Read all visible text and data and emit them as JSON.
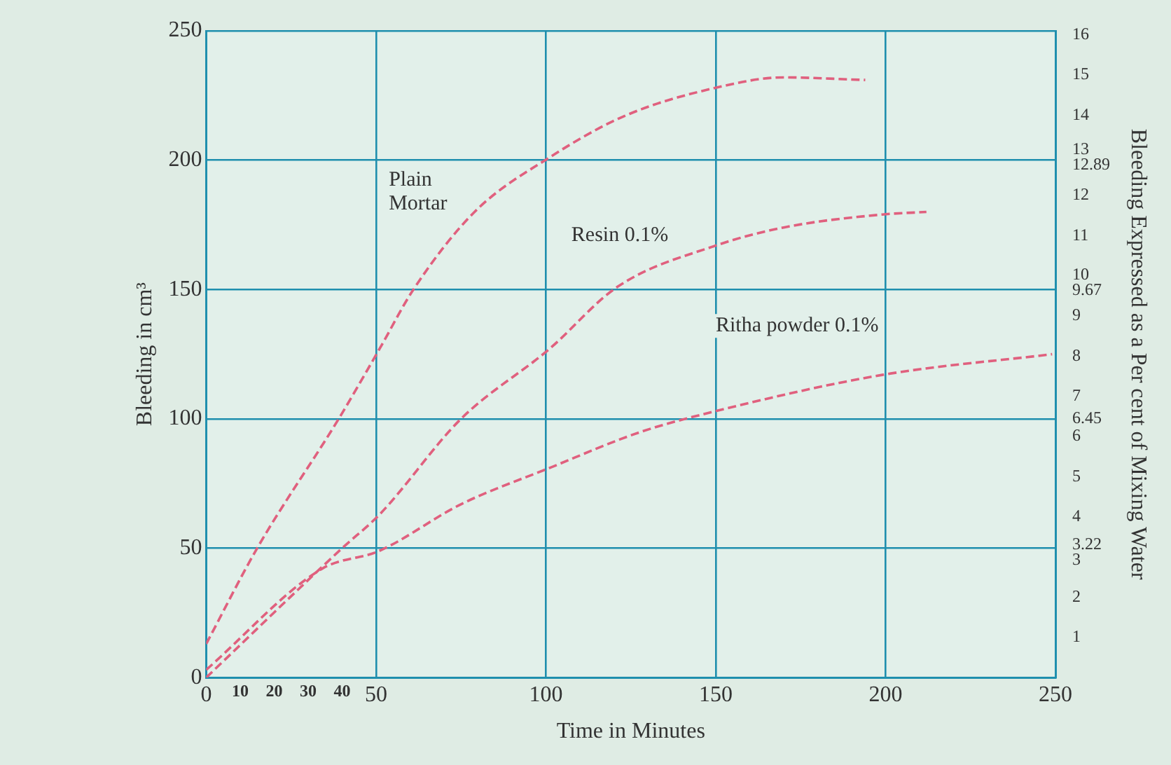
{
  "chart_data": {
    "type": "line",
    "xlabel": "Time in Minutes",
    "ylabel": "Bleeding in cm³",
    "y2label": "Bleeding Expressed as a Per cent of Mixing Water",
    "xlim": [
      0,
      250
    ],
    "xticks": [
      0,
      10,
      20,
      30,
      40,
      50,
      100,
      150,
      200,
      250
    ],
    "ylim": [
      0,
      250
    ],
    "yticks": [
      0,
      50,
      100,
      150,
      200,
      250
    ],
    "y2lim": [
      0,
      16.1
    ],
    "y2ticks": [
      1,
      2,
      3,
      3.22,
      4,
      5,
      6,
      6.45,
      7,
      8,
      9,
      9.67,
      10,
      11,
      12,
      12.89,
      13,
      14,
      15,
      16
    ],
    "grid": true,
    "legend": false,
    "marker": "none",
    "line_style": "dashed",
    "series": [
      {
        "name": "Plain Mortar",
        "color": "#e0607e",
        "x": [
          0,
          15,
          39,
          51,
          61,
          79,
          101,
          123,
          150,
          170,
          194
        ],
        "values": [
          13,
          50,
          100,
          127,
          150,
          180,
          201,
          217,
          228,
          232,
          231
        ]
      },
      {
        "name": "Resin 0.1%",
        "color": "#e0607e",
        "x": [
          0,
          40,
          51,
          75,
          101,
          121,
          150,
          170,
          199,
          212
        ],
        "values": [
          0,
          50,
          63,
          100,
          127,
          151,
          167,
          174,
          179,
          180
        ]
      },
      {
        "name": "Ritha powder 0.1%",
        "color": "#e0607e",
        "x": [
          0,
          34,
          51,
          75,
          101,
          128,
          150,
          199,
          249
        ],
        "values": [
          3,
          42,
          49,
          67,
          81,
          95,
          103,
          117,
          125
        ]
      }
    ]
  }
}
